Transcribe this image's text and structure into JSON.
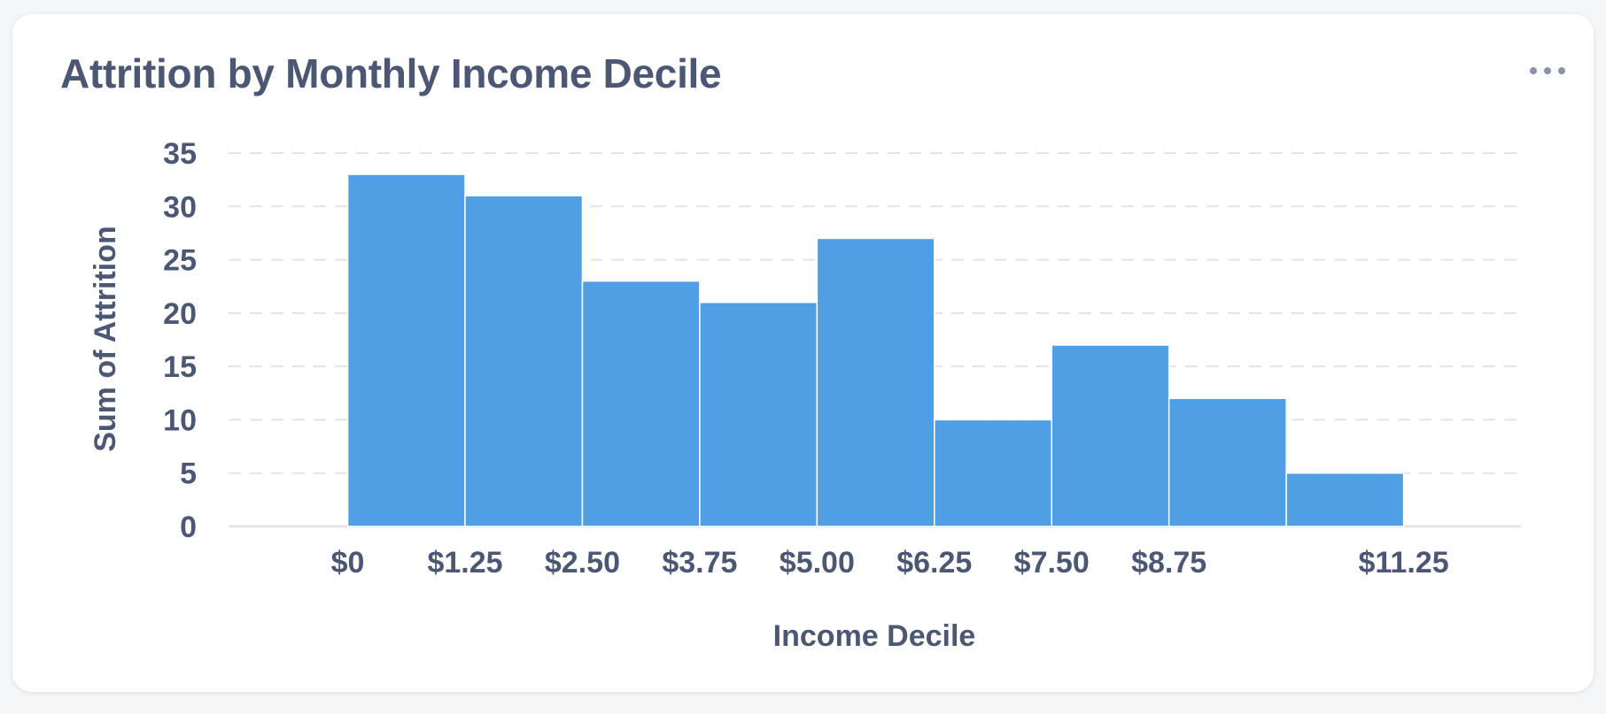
{
  "card": {
    "title": "Attrition by Monthly Income Decile",
    "menu_icon": "ellipsis-icon"
  },
  "colors": {
    "bar": "#509ee3",
    "bar_stroke": "#ffffff",
    "text": "#4c5773",
    "grid": "#e2e4e8"
  },
  "chart_data": {
    "type": "bar",
    "title": "Attrition by Monthly Income Decile",
    "xlabel": "Income Decile",
    "ylabel": "Sum of Attrition",
    "bin_width": 1.25,
    "bins": [
      {
        "start": 0,
        "value": 33
      },
      {
        "start": 1.25,
        "value": 31
      },
      {
        "start": 2.5,
        "value": 23
      },
      {
        "start": 3.75,
        "value": 21
      },
      {
        "start": 5.0,
        "value": 27
      },
      {
        "start": 6.25,
        "value": 10
      },
      {
        "start": 7.5,
        "value": 17
      },
      {
        "start": 8.75,
        "value": 12
      },
      {
        "start": 10.0,
        "value": 5
      }
    ],
    "x_ticks": [
      {
        "value": 0,
        "label": "$0"
      },
      {
        "value": 1.25,
        "label": "$1.25"
      },
      {
        "value": 2.5,
        "label": "$2.50"
      },
      {
        "value": 3.75,
        "label": "$3.75"
      },
      {
        "value": 5.0,
        "label": "$5.00"
      },
      {
        "value": 6.25,
        "label": "$6.25"
      },
      {
        "value": 7.5,
        "label": "$7.50"
      },
      {
        "value": 8.75,
        "label": "$8.75"
      },
      {
        "value": 11.25,
        "label": "$11.25"
      }
    ],
    "xlim": [
      -1.27,
      12.5
    ],
    "ylim": [
      0,
      35
    ],
    "y_ticks": [
      0,
      5,
      10,
      15,
      20,
      25,
      30,
      35
    ],
    "grid": true,
    "legend": "none"
  }
}
